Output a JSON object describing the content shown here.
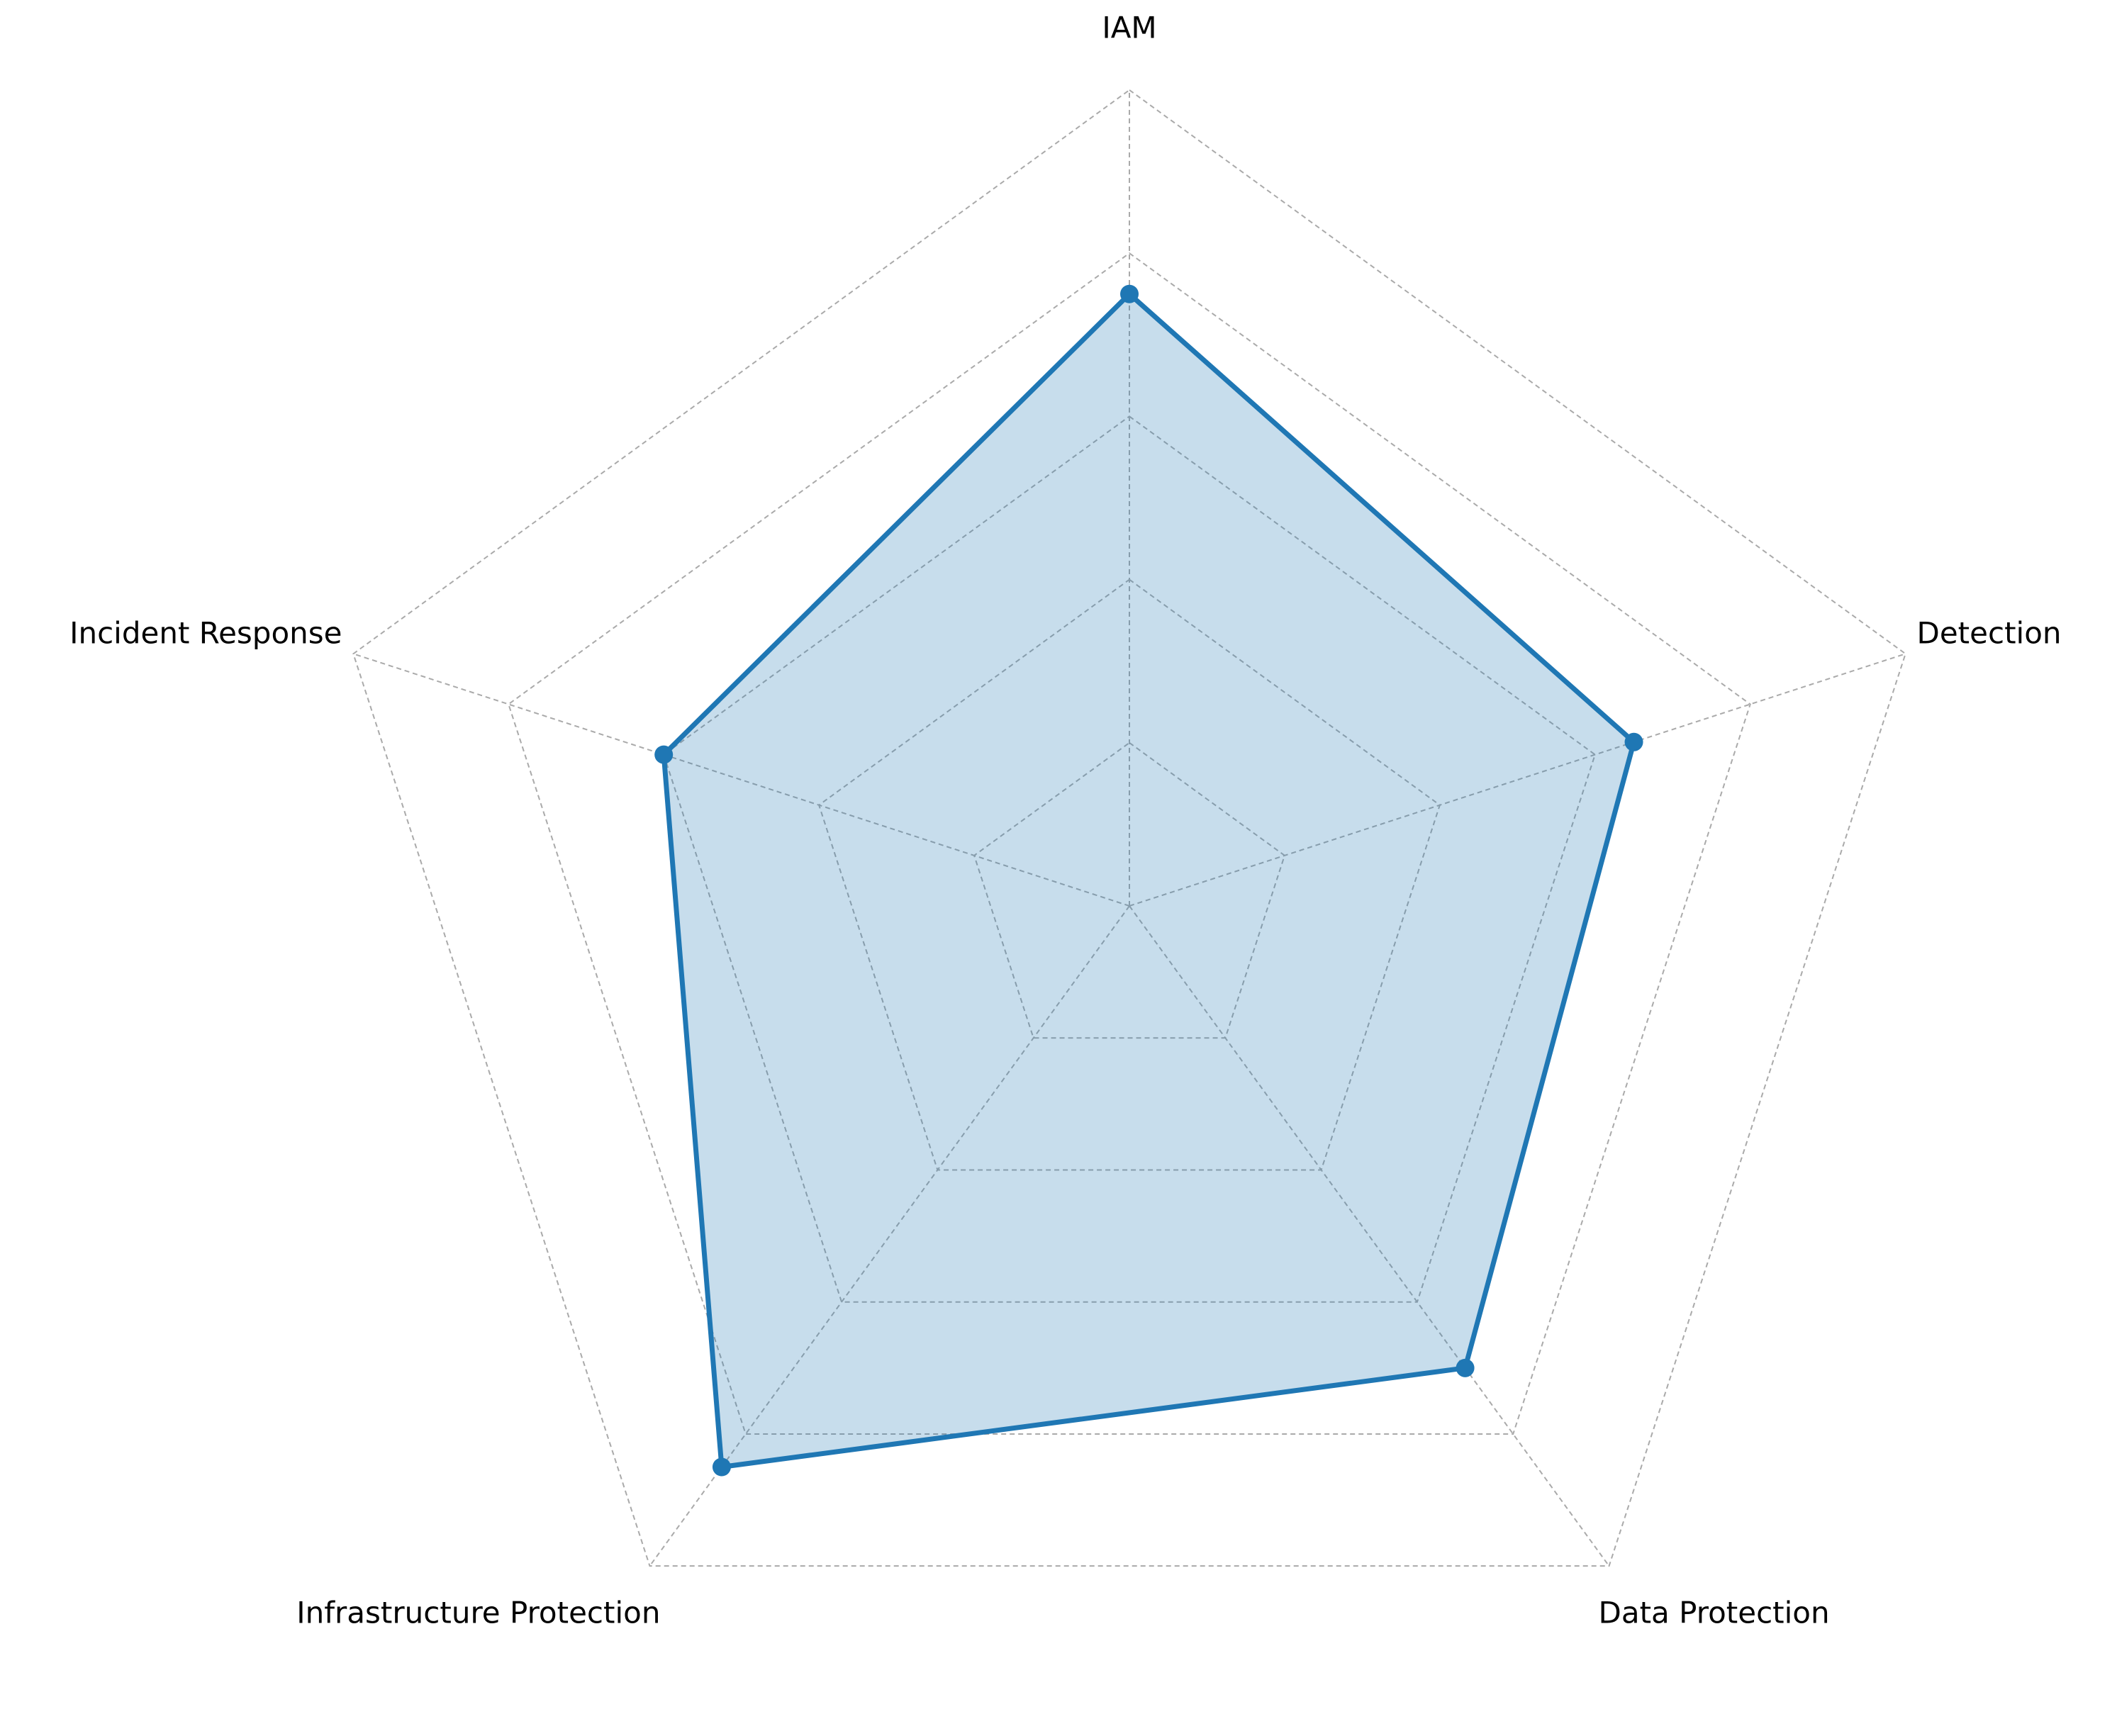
{
  "chart_data": {
    "type": "radar",
    "categories": [
      "IAM",
      "Detection",
      "Data Protection",
      "Infrastructure Protection",
      "Incident Response"
    ],
    "series": [
      {
        "values": [
          3.75,
          3.25,
          3.5,
          4.25,
          3.0
        ],
        "color": "#1f77b4",
        "fill_color": "#1f77b4",
        "fill_opacity": 0.25
      }
    ],
    "rlim": [
      0,
      5
    ],
    "rticks": [
      1,
      2,
      3,
      4,
      5
    ],
    "grid": true,
    "grid_style": "dashed",
    "grid_color": "#aaaaaa",
    "radial_tick_labels_visible": false
  }
}
